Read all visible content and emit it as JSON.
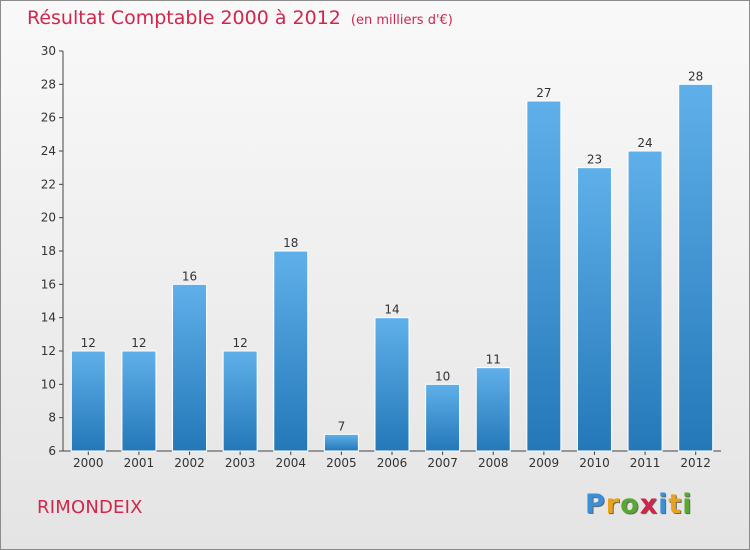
{
  "title": "Résultat Comptable 2000 à 2012",
  "subtitle": "(en milliers d'€)",
  "commune": "RIMONDEIX",
  "logo": {
    "text": "Proxiti",
    "letters": [
      {
        "ch": "P",
        "color": "#3a8fd6"
      },
      {
        "ch": "r",
        "color": "#e8a21b"
      },
      {
        "ch": "o",
        "color": "#5aa832"
      },
      {
        "ch": "x",
        "color": "#d0264c"
      },
      {
        "ch": "i",
        "color": "#3a8fd6"
      },
      {
        "ch": "t",
        "color": "#e8a21b"
      },
      {
        "ch": "i",
        "color": "#5aa832"
      }
    ]
  },
  "colors": {
    "accent": "#d0264c",
    "bar_light": "#5fb0ea",
    "bar_dark": "#2478b8"
  },
  "chart_data": {
    "type": "bar",
    "title": "Résultat Comptable 2000 à 2012",
    "subtitle": "(en milliers d'€)",
    "xlabel": "",
    "ylabel": "",
    "categories": [
      "2000",
      "2001",
      "2002",
      "2003",
      "2004",
      "2005",
      "2006",
      "2007",
      "2008",
      "2009",
      "2010",
      "2011",
      "2012"
    ],
    "values": [
      12,
      12,
      16,
      12,
      18,
      7,
      14,
      10,
      11,
      27,
      23,
      24,
      28
    ],
    "ylim": [
      6,
      30
    ],
    "yticks": [
      6,
      8,
      10,
      12,
      14,
      16,
      18,
      20,
      22,
      24,
      26,
      28,
      30
    ],
    "grid": false,
    "legend": "none"
  }
}
